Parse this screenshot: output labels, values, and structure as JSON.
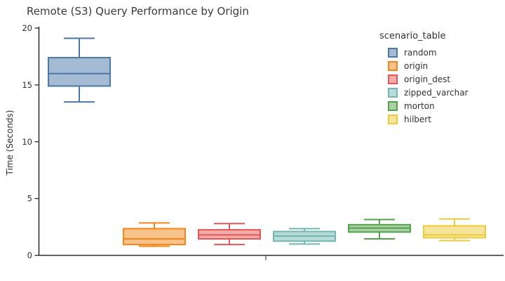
{
  "chart_data": {
    "type": "boxplot",
    "title": "Remote (S3) Query Performance by Origin",
    "ylabel": "Time (Seconds)",
    "xlabel": "",
    "ylim": [
      0,
      20
    ],
    "yticks": [
      0,
      5,
      10,
      15,
      20
    ],
    "xticks": [
      ""
    ],
    "grid": false,
    "fill_opacity": 0.5,
    "legend": {
      "title": "scenario_table",
      "position": "right"
    },
    "series": [
      {
        "name": "random",
        "color": "#4c78a8",
        "whisker_low": 13.5,
        "q1": 14.9,
        "median": 16.0,
        "q3": 17.4,
        "whisker_high": 19.1
      },
      {
        "name": "origin",
        "color": "#f58518",
        "whisker_low": 0.8,
        "q1": 0.95,
        "median": 1.45,
        "q3": 2.35,
        "whisker_high": 2.85
      },
      {
        "name": "origin_dest",
        "color": "#e45756",
        "whisker_low": 0.95,
        "q1": 1.45,
        "median": 1.8,
        "q3": 2.25,
        "whisker_high": 2.8
      },
      {
        "name": "zipped_varchar",
        "color": "#72b7b2",
        "whisker_low": 1.0,
        "q1": 1.25,
        "median": 1.7,
        "q3": 2.1,
        "whisker_high": 2.35
      },
      {
        "name": "morton",
        "color": "#54a24b",
        "whisker_low": 1.45,
        "q1": 2.05,
        "median": 2.4,
        "q3": 2.7,
        "whisker_high": 3.15
      },
      {
        "name": "hilbert",
        "color": "#eeca3b",
        "whisker_low": 1.3,
        "q1": 1.55,
        "median": 1.8,
        "q3": 2.6,
        "whisker_high": 3.2
      }
    ]
  }
}
